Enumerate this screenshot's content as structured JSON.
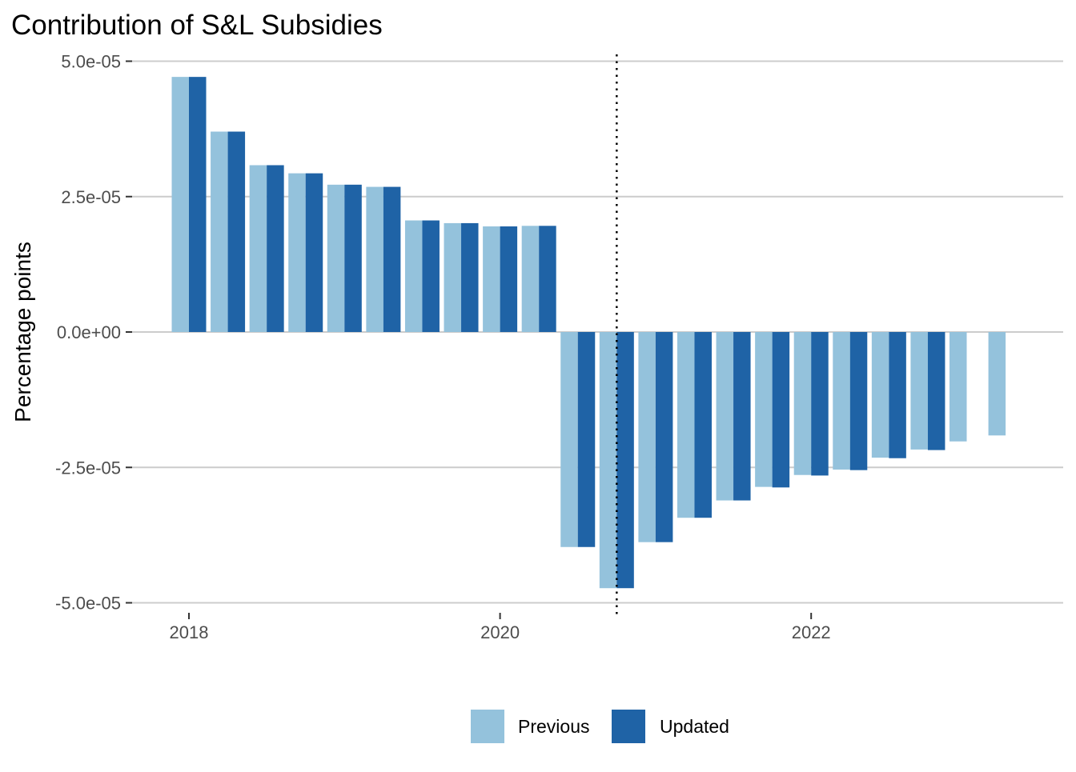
{
  "chart_data": {
    "type": "bar",
    "title": "Contribution of S&L Subsidies",
    "xlabel": "",
    "ylabel": "Percentage points",
    "ylim": [
      -5e-05,
      5e-05
    ],
    "yticks": [
      5e-05,
      2.5e-05,
      0,
      -2.5e-05,
      -5e-05
    ],
    "ytick_labels": [
      "5.0e-05",
      "2.5e-05",
      "0.0e+00",
      "-2.5e-05",
      "-5.0e-05"
    ],
    "xticks": [
      2018,
      2020,
      2022
    ],
    "xtick_labels": [
      "2018",
      "2020",
      "2022"
    ],
    "x": [
      2018.0,
      2018.25,
      2018.5,
      2018.75,
      2019.0,
      2019.25,
      2019.5,
      2019.75,
      2020.0,
      2020.25,
      2020.5,
      2020.75,
      2021.0,
      2021.25,
      2021.5,
      2021.75,
      2022.0,
      2022.25,
      2022.5,
      2022.75,
      2023.0,
      2023.25
    ],
    "grid": true,
    "legend_position": "bottom",
    "vline": {
      "x": 2020.75,
      "style": "dotted"
    },
    "series": [
      {
        "name": "Previous",
        "color": "#94c2dc",
        "values": [
          4.71e-05,
          3.7e-05,
          3.08e-05,
          2.93e-05,
          2.72e-05,
          2.68e-05,
          2.06e-05,
          2.01e-05,
          1.95e-05,
          1.96e-05,
          -3.97e-05,
          -4.73e-05,
          -3.88e-05,
          -3.43e-05,
          -3.11e-05,
          -2.86e-05,
          -2.64e-05,
          -2.54e-05,
          -2.32e-05,
          -2.17e-05,
          -2.02e-05,
          -1.91e-05
        ]
      },
      {
        "name": "Updated",
        "color": "#1f63a6",
        "values": [
          4.71e-05,
          3.7e-05,
          3.08e-05,
          2.93e-05,
          2.72e-05,
          2.68e-05,
          2.06e-05,
          2.01e-05,
          1.95e-05,
          1.96e-05,
          -3.97e-05,
          -4.73e-05,
          -3.88e-05,
          -3.43e-05,
          -3.11e-05,
          -2.87e-05,
          -2.65e-05,
          -2.55e-05,
          -2.33e-05,
          -2.18e-05,
          null,
          null
        ]
      }
    ]
  }
}
